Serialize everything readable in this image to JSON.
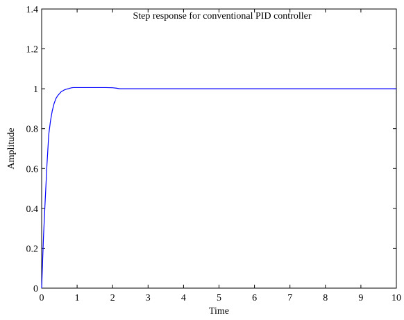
{
  "chart_data": {
    "type": "line",
    "title": "Step response for conventional PID controller",
    "xlabel": "Time",
    "ylabel": "Amplitude",
    "xlim": [
      0,
      10
    ],
    "ylim": [
      0,
      1.4
    ],
    "x_ticks": [
      0,
      1,
      2,
      3,
      4,
      5,
      6,
      7,
      8,
      9,
      10
    ],
    "y_ticks": [
      0,
      0.2,
      0.4,
      0.6,
      0.8,
      1,
      1.2,
      1.4
    ],
    "grid": false,
    "colors": {
      "line": "#0000ff",
      "axes": "#000000"
    },
    "series": [
      {
        "x": [
          0,
          0.05,
          0.1,
          0.15,
          0.2,
          0.25,
          0.3,
          0.35,
          0.4,
          0.45,
          0.5,
          0.55,
          0.6,
          0.65,
          0.7,
          0.75,
          0.8,
          0.85,
          0.9,
          1.0,
          1.2,
          1.5,
          1.8,
          2.0,
          2.1,
          2.2,
          2.4,
          3.0,
          4.0,
          5.0,
          6.0,
          7.0,
          8.0,
          9.0,
          10.0
        ],
        "y": [
          0,
          0.25,
          0.44,
          0.62,
          0.77,
          0.84,
          0.89,
          0.925,
          0.95,
          0.965,
          0.975,
          0.985,
          0.99,
          0.995,
          0.998,
          1.0,
          1.003,
          1.005,
          1.006,
          1.006,
          1.006,
          1.006,
          1.006,
          1.005,
          1.003,
          1.0,
          1.0,
          1.0,
          1.0,
          1.0,
          1.0,
          1.0,
          1.0,
          1.0,
          1.0
        ]
      }
    ]
  }
}
